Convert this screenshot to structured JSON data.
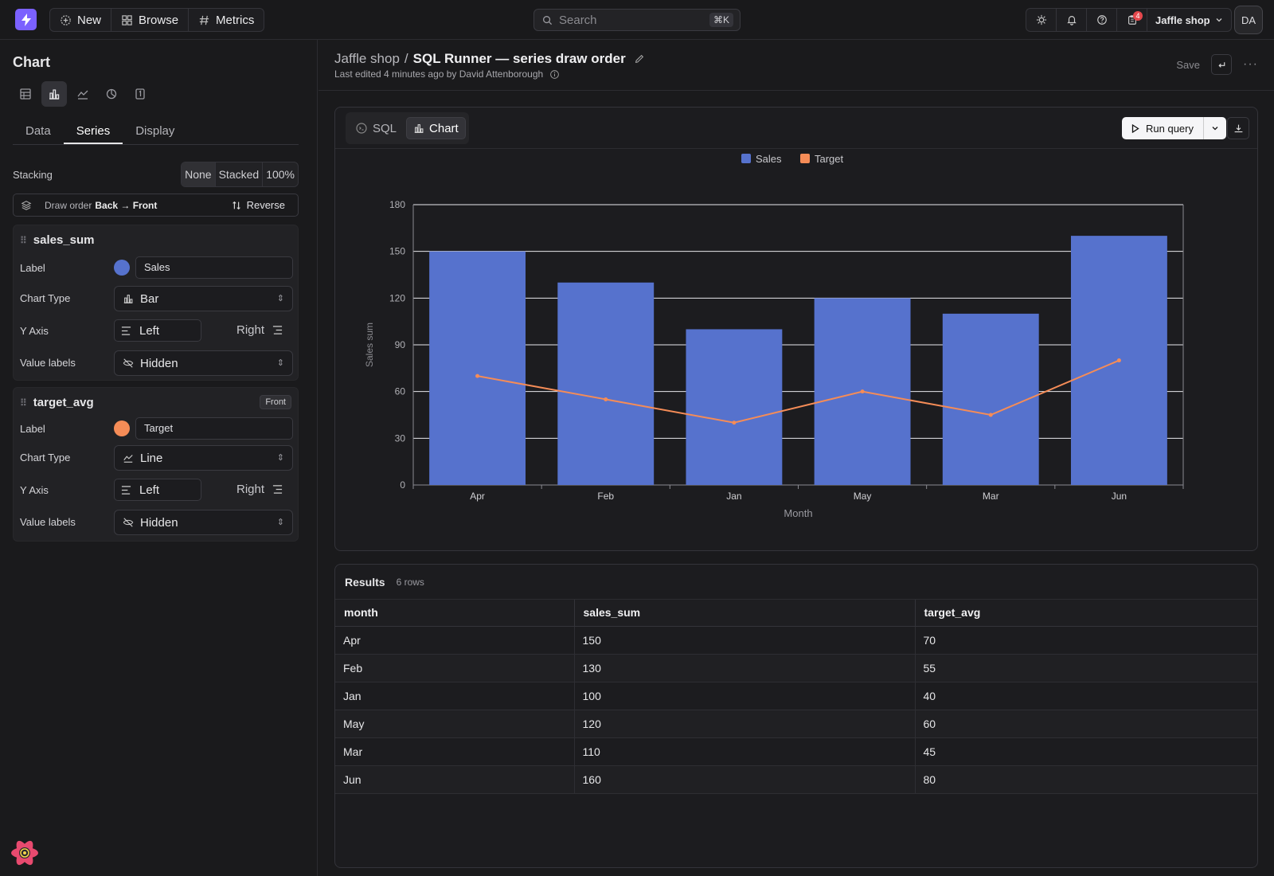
{
  "topbar": {
    "nav": [
      {
        "label": "New",
        "icon": "plus-circle-icon"
      },
      {
        "label": "Browse",
        "icon": "grid-icon"
      },
      {
        "label": "Metrics",
        "icon": "hash-icon"
      }
    ],
    "search_placeholder": "Search",
    "search_shortcut": "⌘K",
    "notification_count": "4",
    "org": "Jaffle shop",
    "avatar": "DA"
  },
  "sidebar": {
    "title": "Chart",
    "chart_types": [
      "table",
      "bar",
      "line",
      "pie",
      "big-number"
    ],
    "active_chart_type": "bar",
    "tabs": [
      "Data",
      "Series",
      "Display"
    ],
    "active_tab": "Series",
    "stacking": {
      "label": "Stacking",
      "options": [
        "None",
        "Stacked",
        "100%"
      ],
      "selected": "None"
    },
    "draw_order": {
      "prefix": "Draw order",
      "order": "Back → Front",
      "action": "Reverse"
    },
    "series": [
      {
        "name": "sales_sum",
        "badge": "",
        "label_caption": "Label",
        "label": "Sales",
        "color": "#5672cd",
        "chart_type_caption": "Chart Type",
        "chart_type": "Bar",
        "y_axis_caption": "Y Axis",
        "y_axis": "Left",
        "y_axis_alt": "Right",
        "value_labels_caption": "Value labels",
        "value_labels": "Hidden"
      },
      {
        "name": "target_avg",
        "badge": "Front",
        "label_caption": "Label",
        "label": "Target",
        "color": "#f58c57",
        "chart_type_caption": "Chart Type",
        "chart_type": "Line",
        "y_axis_caption": "Y Axis",
        "y_axis": "Left",
        "y_axis_alt": "Right",
        "value_labels_caption": "Value labels",
        "value_labels": "Hidden"
      }
    ]
  },
  "header": {
    "project": "Jaffle shop",
    "separator": "/",
    "title": "SQL Runner — series draw order",
    "edited": "Last edited 4 minutes ago by David Attenborough",
    "save": "Save"
  },
  "editor": {
    "tabs": [
      {
        "label": "SQL",
        "active": false
      },
      {
        "label": "Chart",
        "active": true
      }
    ],
    "run_label": "Run query"
  },
  "chart_data": {
    "type": "bar",
    "categories": [
      "Apr",
      "Feb",
      "Jan",
      "May",
      "Mar",
      "Jun"
    ],
    "series": [
      {
        "name": "Sales",
        "type": "bar",
        "color": "#5672cd",
        "values": [
          150,
          130,
          100,
          120,
          110,
          160
        ]
      },
      {
        "name": "Target",
        "type": "line",
        "color": "#f58c57",
        "values": [
          70,
          55,
          40,
          60,
          45,
          80
        ]
      }
    ],
    "xlabel": "Month",
    "ylabel": "Sales sum",
    "ylim": [
      0,
      180
    ],
    "yticks": [
      0,
      30,
      60,
      90,
      120,
      150,
      180
    ],
    "legend_position": "top-center",
    "grid": true
  },
  "results": {
    "title": "Results",
    "count": "6 rows",
    "columns": [
      "month",
      "sales_sum",
      "target_avg"
    ],
    "rows": [
      [
        "Apr",
        "150",
        "70"
      ],
      [
        "Feb",
        "130",
        "55"
      ],
      [
        "Jan",
        "100",
        "40"
      ],
      [
        "May",
        "120",
        "60"
      ],
      [
        "Mar",
        "110",
        "45"
      ],
      [
        "Jun",
        "160",
        "80"
      ]
    ]
  }
}
